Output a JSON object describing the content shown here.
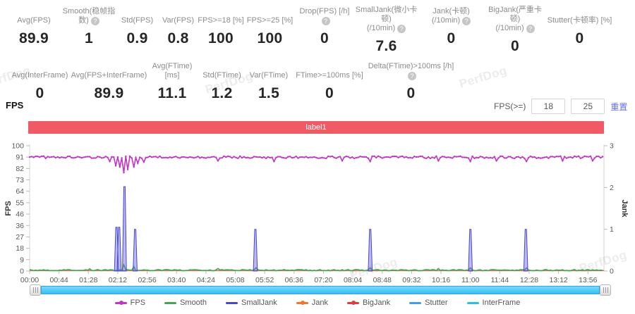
{
  "watermark": "PerfDog",
  "stats_row1": [
    {
      "label": "Avg(FPS)",
      "value": "89.9",
      "help": false
    },
    {
      "label": "Smooth(稳帧指数)",
      "value": "1",
      "help": true
    },
    {
      "label": "Std(FPS)",
      "value": "0.9",
      "help": false
    },
    {
      "label": "Var(FPS)",
      "value": "0.8",
      "help": false
    },
    {
      "label": "FPS>=18 [%]",
      "value": "100",
      "help": false
    },
    {
      "label": "FPS>=25 [%]",
      "value": "100",
      "help": false
    },
    {
      "label": "Drop(FPS) [/h]",
      "value": "0",
      "help": true
    },
    {
      "label": "SmallJank(微小卡顿)",
      "label2": "(/10min)",
      "value": "7.6",
      "help": true
    },
    {
      "label": "Jank(卡顿)",
      "label2": "(/10min)",
      "value": "0",
      "help": true
    },
    {
      "label": "BigJank(严重卡顿)",
      "label2": "(/10min)",
      "value": "0",
      "help": true
    },
    {
      "label": "Stutter(卡顿率) [%]",
      "value": "0",
      "help": false
    }
  ],
  "stats_row2": [
    {
      "label": "Avg(InterFrame)",
      "value": "0",
      "help": false
    },
    {
      "label": "Avg(FPS+InterFrame)",
      "value": "89.9",
      "help": false
    },
    {
      "label": "Avg(FTime) [ms]",
      "value": "11.1",
      "help": false
    },
    {
      "label": "Std(FTime)",
      "value": "1.2",
      "help": false
    },
    {
      "label": "Var(FTime)",
      "value": "1.5",
      "help": false
    },
    {
      "label": "FTime>=100ms [%]",
      "value": "0",
      "help": false
    },
    {
      "label": "Delta(FTime)>100ms [/h]",
      "value": "0",
      "help": true
    }
  ],
  "section": {
    "title": "FPS"
  },
  "controls": {
    "fps_ge_label": "FPS(>=)",
    "threshold1": "18",
    "threshold2": "25",
    "reset_label": "重置"
  },
  "banner": {
    "text": "label1",
    "color": "#ee5b64"
  },
  "chart_data": {
    "type": "line",
    "title": "FPS over time with jank events",
    "x_axis": {
      "ticks": [
        "00:00",
        "00:44",
        "01:28",
        "02:12",
        "02:56",
        "03:40",
        "04:24",
        "05:08",
        "05:52",
        "06:36",
        "07:20",
        "08:04",
        "08:48",
        "09:32",
        "10:16",
        "11:00",
        "11:44",
        "12:28",
        "13:12",
        "13:56"
      ],
      "tick_seconds": [
        0,
        44,
        88,
        132,
        176,
        220,
        264,
        308,
        352,
        396,
        440,
        484,
        528,
        572,
        616,
        660,
        704,
        748,
        792,
        836
      ],
      "total_seconds": 860
    },
    "y_left": {
      "label": "FPS",
      "min": 0,
      "max": 100,
      "ticks": [
        100,
        91,
        82,
        73,
        64,
        55,
        46,
        36,
        27,
        18,
        9,
        0
      ]
    },
    "y_right": {
      "label": "Jank",
      "min": 0,
      "max": 3,
      "ticks": [
        3,
        2,
        1,
        0
      ]
    },
    "series": [
      {
        "name": "FPS",
        "axis": "left",
        "color": "#c433c4",
        "type": "noisy_line",
        "baseline": 90.8,
        "noise": 0.9,
        "markers": true,
        "dips": [
          [
            120,
            87.5
          ],
          [
            129,
            84
          ],
          [
            135,
            83
          ],
          [
            141,
            78.5
          ],
          [
            147,
            81
          ],
          [
            156,
            83
          ],
          [
            162,
            86
          ],
          [
            171,
            87
          ],
          [
            282,
            88
          ],
          [
            366,
            87.5
          ],
          [
            468,
            88
          ],
          [
            510,
            87.5
          ],
          [
            612,
            88
          ],
          [
            660,
            87.5
          ],
          [
            699,
            88
          ],
          [
            744,
            87.5
          ],
          [
            798,
            88
          ],
          [
            843,
            88
          ]
        ]
      },
      {
        "name": "Smooth",
        "axis": "left",
        "color": "#3fa854",
        "type": "noisy_line",
        "baseline": 0.7,
        "noise": 0.5,
        "markers": false,
        "dips": [
          [
            90,
            1.8
          ],
          [
            141,
            5
          ],
          [
            156,
            3.6
          ],
          [
            282,
            2
          ],
          [
            338,
            2.6
          ],
          [
            510,
            2.6
          ],
          [
            612,
            2
          ],
          [
            660,
            2.6
          ],
          [
            744,
            2.6
          ]
        ]
      },
      {
        "name": "SmallJank",
        "axis": "right",
        "color": "#4747d1",
        "fill": "rgba(105,105,220,0.45)",
        "type": "spikes",
        "spikes": [
          [
            130,
            1.05
          ],
          [
            134,
            1.05
          ],
          [
            142,
            2.02
          ],
          [
            158,
            1.0
          ],
          [
            338,
            1.0
          ],
          [
            510,
            1.0
          ],
          [
            660,
            1.0
          ],
          [
            743,
            1.0
          ]
        ]
      },
      {
        "name": "Jank",
        "axis": "right",
        "color": "#f6742c",
        "type": "flat",
        "value": 0
      },
      {
        "name": "BigJank",
        "axis": "right",
        "color": "#e23b3b",
        "type": "flat",
        "value": 0
      },
      {
        "name": "Stutter",
        "axis": "right",
        "color": "#3f9ef2",
        "type": "flat",
        "value": 0
      },
      {
        "name": "InterFrame",
        "axis": "left",
        "color": "#22c3e6",
        "type": "flat",
        "value": 0
      }
    ],
    "legend": [
      {
        "name": "FPS",
        "color": "#c433c4",
        "dot": true
      },
      {
        "name": "Smooth",
        "color": "#3fa854",
        "dot": false
      },
      {
        "name": "SmallJank",
        "color": "#4747d1",
        "dot": false
      },
      {
        "name": "Jank",
        "color": "#f6742c",
        "dot": true
      },
      {
        "name": "BigJank",
        "color": "#e23b3b",
        "dot": true
      },
      {
        "name": "Stutter",
        "color": "#3f9ef2",
        "dot": false
      },
      {
        "name": "InterFrame",
        "color": "#22c3e6",
        "dot": false
      }
    ],
    "legend_position": "bottom",
    "grid": false
  }
}
